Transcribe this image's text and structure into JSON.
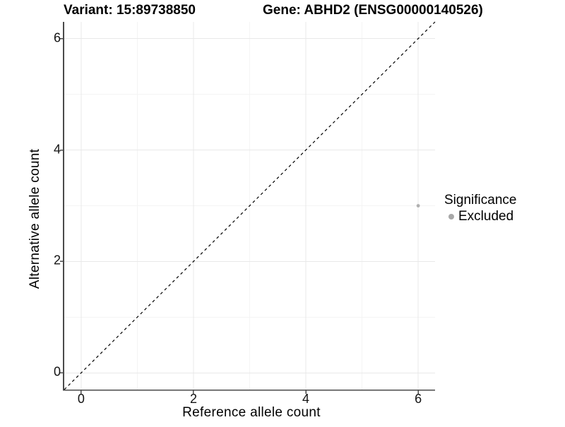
{
  "header": {
    "variant_title": "Variant: 15:89738850",
    "gene_title": "Gene: ABHD2 (ENSG00000140526)"
  },
  "chart_data": {
    "type": "scatter",
    "title_left": "Variant: 15:89738850",
    "title_right": "Gene: ABHD2 (ENSG00000140526)",
    "xlabel": "Reference allele count",
    "ylabel": "Alternative allele count",
    "xlim": [
      -0.3,
      6.3
    ],
    "ylim": [
      -0.3,
      6.3
    ],
    "xticks": [
      0,
      2,
      4,
      6
    ],
    "yticks": [
      0,
      2,
      4,
      6
    ],
    "xticks_minor": [
      1,
      3,
      5
    ],
    "yticks_minor": [
      1,
      3,
      5
    ],
    "grid": "on",
    "legend_position": "right",
    "reference_line": {
      "kind": "identity",
      "equation": "y = x",
      "style": "dashed",
      "color": "#000000"
    },
    "series": [
      {
        "name": "Excluded",
        "color": "#b0b0b0",
        "points": [
          [
            6,
            3
          ]
        ]
      }
    ],
    "legend": {
      "title": "Significance"
    },
    "colors": {
      "grid_major": "#e9e9e9",
      "grid_minor": "#f4f4f4",
      "axis_line": "#4a4a4a",
      "tick_mark": "#4a4a4a",
      "point": "#b0b0b0",
      "legend_dot": "#a8a8a8",
      "text": "#000000"
    }
  }
}
